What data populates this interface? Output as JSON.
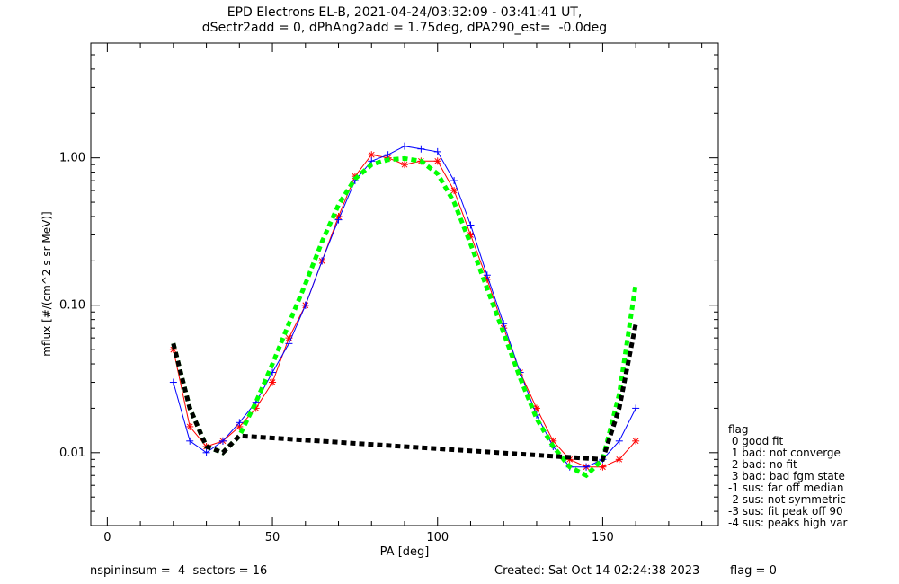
{
  "title_line1": "EPD Electrons EL-B, 2021-04-24/03:32:09 - 03:41:41 UT,",
  "title_line2": "dSectr2add = 0, dPhAng2add = 1.75deg, dPA290_est=  -0.0deg",
  "footer": {
    "left": "nspininsum =  4  sectors = 16",
    "created": "Created: Sat Oct 14 02:24:38 2023",
    "flag": "flag = 0"
  },
  "flag_legend": {
    "title": "flag",
    "items": [
      " 0 good fit",
      " 1 bad: not converge",
      " 2 bad: no fit",
      " 3 bad: bad fgm state",
      "-1 sus: far off median",
      "-2 sus: not symmetric",
      "-3 sus: fit peak off 90",
      "-4 sus: peaks high var"
    ]
  },
  "chart_data": {
    "type": "line",
    "xlabel": "PA [deg]",
    "ylabel": "mflux [#/(cm^2 s sr MeV)]",
    "xlim": [
      -5,
      185
    ],
    "ylim": [
      0.0032,
      6.0
    ],
    "yscale": "log",
    "x_ticks": [
      0,
      50,
      100,
      150
    ],
    "y_ticks": [
      0.01,
      0.1,
      1.0
    ],
    "y_tick_labels": [
      "0.01",
      "0.10",
      "1.00"
    ],
    "colors": {
      "red_series": "#ff0000",
      "blue_series": "#0000ff",
      "fit_green": "#00ff00",
      "fit_black": "#000000"
    },
    "series": [
      {
        "color": "#ff0000",
        "marker": "star",
        "x": [
          20,
          25,
          30,
          35,
          40,
          45,
          50,
          55,
          60,
          65,
          70,
          75,
          80,
          85,
          90,
          95,
          100,
          105,
          110,
          115,
          120,
          125,
          130,
          135,
          140,
          145,
          150,
          155,
          160
        ],
        "y": [
          0.05,
          0.015,
          0.011,
          0.012,
          0.015,
          0.02,
          0.03,
          0.06,
          0.1,
          0.2,
          0.4,
          0.75,
          1.05,
          1.0,
          0.9,
          0.95,
          0.95,
          0.6,
          0.3,
          0.15,
          0.07,
          0.035,
          0.02,
          0.012,
          0.009,
          0.008,
          0.008,
          0.009,
          0.012
        ]
      },
      {
        "color": "#0000ff",
        "marker": "plus",
        "x": [
          20,
          25,
          30,
          35,
          40,
          45,
          50,
          55,
          60,
          65,
          70,
          75,
          80,
          85,
          90,
          95,
          100,
          105,
          110,
          115,
          120,
          125,
          130,
          135,
          140,
          145,
          150,
          155,
          160
        ],
        "y": [
          0.03,
          0.012,
          0.01,
          0.012,
          0.016,
          0.022,
          0.035,
          0.055,
          0.1,
          0.2,
          0.38,
          0.7,
          0.95,
          1.05,
          1.2,
          1.15,
          1.1,
          0.7,
          0.35,
          0.16,
          0.075,
          0.035,
          0.018,
          0.011,
          0.008,
          0.008,
          0.009,
          0.012,
          0.02
        ]
      },
      {
        "color": "#00ff00",
        "style": "dashed-fit",
        "x": [
          20,
          25,
          30,
          35,
          40,
          45,
          50,
          55,
          60,
          65,
          70,
          75,
          80,
          85,
          90,
          95,
          100,
          105,
          110,
          115,
          120,
          125,
          130,
          135,
          140,
          145,
          150,
          155,
          160
        ],
        "y": [
          0.055,
          0.02,
          0.011,
          0.01,
          0.013,
          0.022,
          0.04,
          0.075,
          0.14,
          0.27,
          0.48,
          0.72,
          0.9,
          0.97,
          0.99,
          0.95,
          0.78,
          0.5,
          0.26,
          0.13,
          0.065,
          0.032,
          0.017,
          0.011,
          0.008,
          0.007,
          0.009,
          0.025,
          0.14
        ]
      },
      {
        "color": "#000000",
        "style": "dashed-fit",
        "x": [
          20,
          25,
          30,
          35,
          40,
          150,
          155,
          160
        ],
        "y": [
          0.055,
          0.02,
          0.011,
          0.01,
          0.013,
          0.009,
          0.02,
          0.075
        ]
      }
    ]
  }
}
